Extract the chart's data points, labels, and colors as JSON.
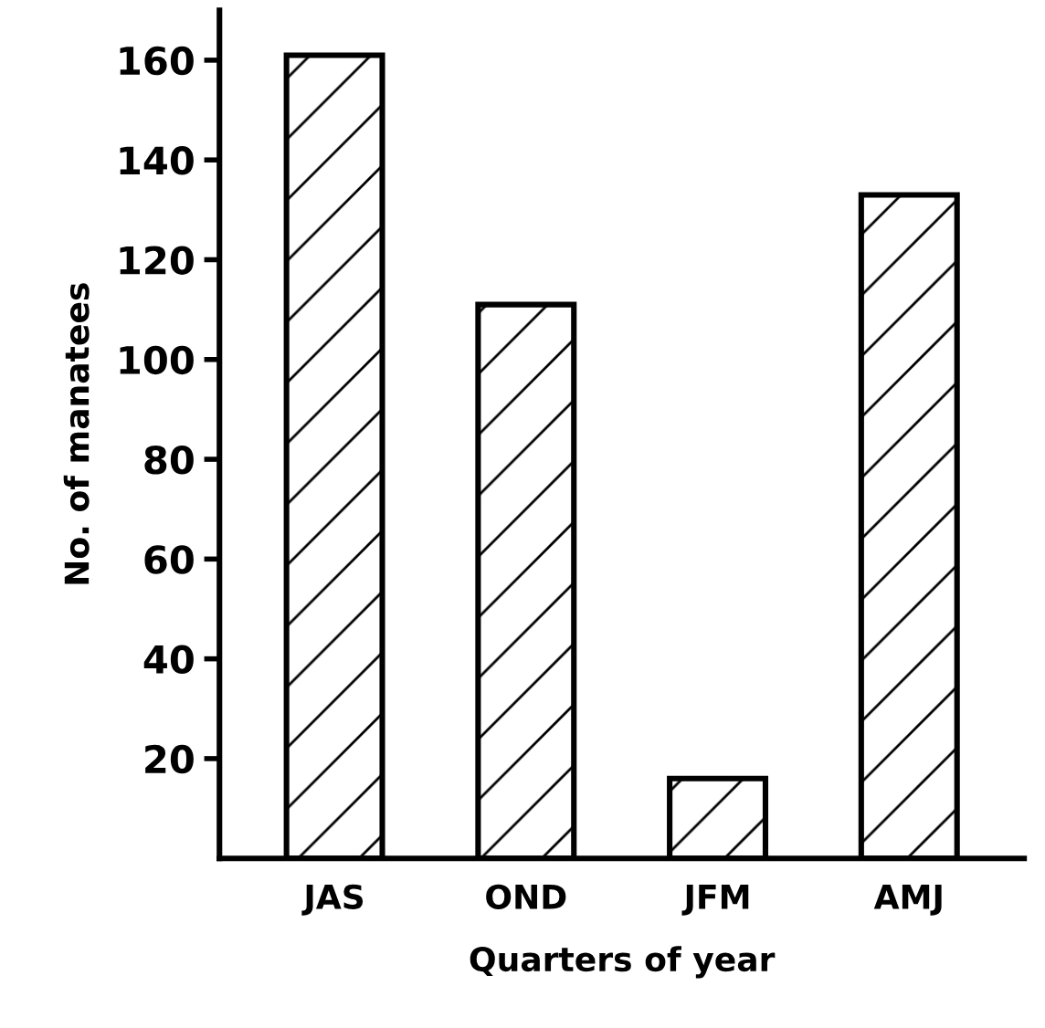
{
  "chart_data": {
    "type": "bar",
    "xlabel": "Quarters of year",
    "ylabel": "No. of manatees",
    "categories": [
      "JAS",
      "OND",
      "JFM",
      "AMJ"
    ],
    "series": [
      {
        "color": "#000000",
        "values": [
          161,
          111,
          16,
          133
        ]
      }
    ],
    "ylim": [
      0,
      170
    ],
    "yticks": [
      20,
      40,
      60,
      80,
      100,
      120,
      140,
      160
    ],
    "grid": false
  }
}
